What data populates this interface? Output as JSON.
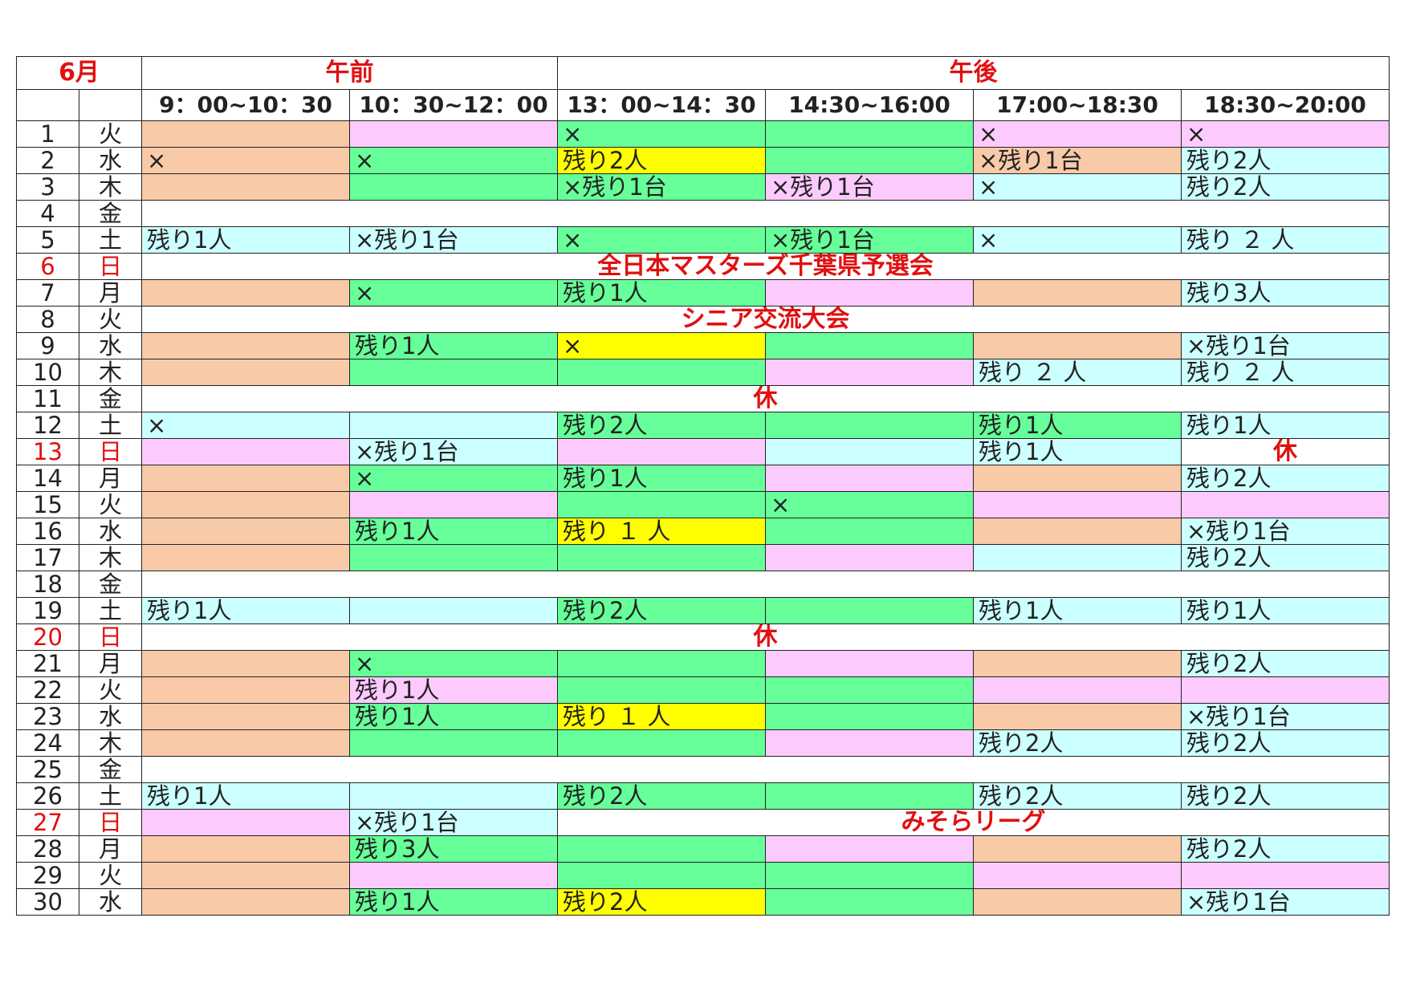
{
  "month": "6月",
  "sections": {
    "am": "午前",
    "pm": "午後"
  },
  "slots": [
    "9：00~10：30",
    "10：30~12：00",
    "13：00~14：30",
    "14:30~16:00",
    "17:00~18:30",
    "18:30~20:00"
  ],
  "colors": {
    "o": "#f8caa8",
    "p": "#fdcafd",
    "g": "#66ff99",
    "c": "#ccffff",
    "y": "#ffff00",
    "w": "#ffffff",
    "event_text": "#e01010"
  },
  "rows": [
    {
      "day": "1",
      "wd": "火",
      "cells": [
        {
          "c": "o",
          "t": ""
        },
        {
          "c": "p",
          "t": ""
        },
        {
          "c": "g",
          "t": "×"
        },
        {
          "c": "g",
          "t": ""
        },
        {
          "c": "p",
          "t": "×"
        },
        {
          "c": "p",
          "t": "×"
        }
      ]
    },
    {
      "day": "2",
      "wd": "水",
      "cells": [
        {
          "c": "o",
          "t": "×"
        },
        {
          "c": "g",
          "t": "×"
        },
        {
          "c": "y",
          "t": "残り2人"
        },
        {
          "c": "g",
          "t": ""
        },
        {
          "c": "o",
          "t": "×残り1台"
        },
        {
          "c": "c",
          "t": "残り2人"
        }
      ]
    },
    {
      "day": "3",
      "wd": "木",
      "cells": [
        {
          "c": "o",
          "t": ""
        },
        {
          "c": "g",
          "t": ""
        },
        {
          "c": "g",
          "t": "×残り1台"
        },
        {
          "c": "p",
          "t": "×残り1台"
        },
        {
          "c": "c",
          "t": "×"
        },
        {
          "c": "c",
          "t": "残り2人"
        }
      ]
    },
    {
      "day": "4",
      "wd": "金",
      "event": ""
    },
    {
      "day": "5",
      "wd": "土",
      "cells": [
        {
          "c": "c",
          "t": "残り1人"
        },
        {
          "c": "c",
          "t": "×残り1台"
        },
        {
          "c": "g",
          "t": "×"
        },
        {
          "c": "g",
          "t": "×残り1台"
        },
        {
          "c": "c",
          "t": "×"
        },
        {
          "c": "c",
          "t": "残り ２ 人"
        }
      ]
    },
    {
      "day": "6",
      "wd": "日",
      "red": true,
      "event": "全日本マスターズ千葉県予選会"
    },
    {
      "day": "7",
      "wd": "月",
      "cells": [
        {
          "c": "o",
          "t": ""
        },
        {
          "c": "g",
          "t": "×"
        },
        {
          "c": "g",
          "t": "残り1人"
        },
        {
          "c": "p",
          "t": ""
        },
        {
          "c": "o",
          "t": ""
        },
        {
          "c": "c",
          "t": "残り3人"
        }
      ]
    },
    {
      "day": "8",
      "wd": "火",
      "event": "シニア交流大会"
    },
    {
      "day": "9",
      "wd": "水",
      "cells": [
        {
          "c": "o",
          "t": ""
        },
        {
          "c": "g",
          "t": "残り1人"
        },
        {
          "c": "y",
          "t": "×"
        },
        {
          "c": "g",
          "t": ""
        },
        {
          "c": "o",
          "t": ""
        },
        {
          "c": "c",
          "t": "×残り1台"
        }
      ]
    },
    {
      "day": "10",
      "wd": "木",
      "cells": [
        {
          "c": "o",
          "t": ""
        },
        {
          "c": "g",
          "t": ""
        },
        {
          "c": "g",
          "t": ""
        },
        {
          "c": "p",
          "t": ""
        },
        {
          "c": "c",
          "t": "残り ２ 人"
        },
        {
          "c": "c",
          "t": "残り ２ 人"
        }
      ]
    },
    {
      "day": "11",
      "wd": "金",
      "event": "休"
    },
    {
      "day": "12",
      "wd": "土",
      "cells": [
        {
          "c": "c",
          "t": "×"
        },
        {
          "c": "c",
          "t": ""
        },
        {
          "c": "g",
          "t": "残り2人"
        },
        {
          "c": "g",
          "t": ""
        },
        {
          "c": "g",
          "t": "残り1人"
        },
        {
          "c": "c",
          "t": "残り1人"
        }
      ]
    },
    {
      "day": "13",
      "wd": "日",
      "red": true,
      "cells": [
        {
          "c": "p",
          "t": ""
        },
        {
          "c": "c",
          "t": "×残り1台"
        },
        {
          "c": "p",
          "t": ""
        },
        {
          "c": "c",
          "t": ""
        },
        {
          "c": "c",
          "t": "残り1人"
        },
        {
          "c": "w",
          "t": "休",
          "ev": true
        }
      ]
    },
    {
      "day": "14",
      "wd": "月",
      "cells": [
        {
          "c": "o",
          "t": ""
        },
        {
          "c": "g",
          "t": "×"
        },
        {
          "c": "g",
          "t": "残り1人"
        },
        {
          "c": "p",
          "t": ""
        },
        {
          "c": "o",
          "t": ""
        },
        {
          "c": "c",
          "t": "残り2人"
        }
      ]
    },
    {
      "day": "15",
      "wd": "火",
      "cells": [
        {
          "c": "o",
          "t": ""
        },
        {
          "c": "p",
          "t": ""
        },
        {
          "c": "g",
          "t": ""
        },
        {
          "c": "g",
          "t": "×"
        },
        {
          "c": "p",
          "t": ""
        },
        {
          "c": "p",
          "t": ""
        }
      ]
    },
    {
      "day": "16",
      "wd": "水",
      "cells": [
        {
          "c": "o",
          "t": ""
        },
        {
          "c": "g",
          "t": "残り1人"
        },
        {
          "c": "y",
          "t": "残り １ 人"
        },
        {
          "c": "g",
          "t": ""
        },
        {
          "c": "o",
          "t": ""
        },
        {
          "c": "c",
          "t": "×残り1台"
        }
      ]
    },
    {
      "day": "17",
      "wd": "木",
      "cells": [
        {
          "c": "o",
          "t": ""
        },
        {
          "c": "g",
          "t": ""
        },
        {
          "c": "g",
          "t": ""
        },
        {
          "c": "p",
          "t": ""
        },
        {
          "c": "c",
          "t": ""
        },
        {
          "c": "c",
          "t": "残り2人"
        }
      ]
    },
    {
      "day": "18",
      "wd": "金",
      "event": ""
    },
    {
      "day": "19",
      "wd": "土",
      "cells": [
        {
          "c": "c",
          "t": "残り1人"
        },
        {
          "c": "c",
          "t": ""
        },
        {
          "c": "g",
          "t": "残り2人"
        },
        {
          "c": "g",
          "t": ""
        },
        {
          "c": "c",
          "t": "残り1人"
        },
        {
          "c": "c",
          "t": "残り1人"
        }
      ]
    },
    {
      "day": "20",
      "wd": "日",
      "red": true,
      "event": "休"
    },
    {
      "day": "21",
      "wd": "月",
      "cells": [
        {
          "c": "o",
          "t": ""
        },
        {
          "c": "g",
          "t": "×"
        },
        {
          "c": "g",
          "t": ""
        },
        {
          "c": "p",
          "t": ""
        },
        {
          "c": "o",
          "t": ""
        },
        {
          "c": "c",
          "t": "残り2人"
        }
      ]
    },
    {
      "day": "22",
      "wd": "火",
      "cells": [
        {
          "c": "o",
          "t": ""
        },
        {
          "c": "p",
          "t": "残り1人"
        },
        {
          "c": "g",
          "t": ""
        },
        {
          "c": "g",
          "t": ""
        },
        {
          "c": "p",
          "t": ""
        },
        {
          "c": "p",
          "t": ""
        }
      ]
    },
    {
      "day": "23",
      "wd": "水",
      "cells": [
        {
          "c": "o",
          "t": ""
        },
        {
          "c": "g",
          "t": "残り1人"
        },
        {
          "c": "y",
          "t": "残り １ 人"
        },
        {
          "c": "g",
          "t": ""
        },
        {
          "c": "o",
          "t": ""
        },
        {
          "c": "c",
          "t": "×残り1台"
        }
      ]
    },
    {
      "day": "24",
      "wd": "木",
      "cells": [
        {
          "c": "o",
          "t": ""
        },
        {
          "c": "g",
          "t": ""
        },
        {
          "c": "g",
          "t": ""
        },
        {
          "c": "p",
          "t": ""
        },
        {
          "c": "c",
          "t": "残り2人"
        },
        {
          "c": "c",
          "t": "残り2人"
        }
      ]
    },
    {
      "day": "25",
      "wd": "金",
      "event": ""
    },
    {
      "day": "26",
      "wd": "土",
      "cells": [
        {
          "c": "c",
          "t": "残り1人"
        },
        {
          "c": "c",
          "t": ""
        },
        {
          "c": "g",
          "t": "残り2人"
        },
        {
          "c": "g",
          "t": ""
        },
        {
          "c": "c",
          "t": "残り2人"
        },
        {
          "c": "c",
          "t": "残り2人"
        }
      ]
    },
    {
      "day": "27",
      "wd": "日",
      "red": true,
      "cells": [
        {
          "c": "p",
          "t": ""
        },
        {
          "c": "c",
          "t": "×残り1台"
        }
      ],
      "event_pm": "みそらリーグ"
    },
    {
      "day": "28",
      "wd": "月",
      "cells": [
        {
          "c": "o",
          "t": ""
        },
        {
          "c": "g",
          "t": "残り3人"
        },
        {
          "c": "g",
          "t": ""
        },
        {
          "c": "p",
          "t": ""
        },
        {
          "c": "o",
          "t": ""
        },
        {
          "c": "c",
          "t": "残り2人"
        }
      ]
    },
    {
      "day": "29",
      "wd": "火",
      "cells": [
        {
          "c": "o",
          "t": ""
        },
        {
          "c": "p",
          "t": ""
        },
        {
          "c": "g",
          "t": ""
        },
        {
          "c": "g",
          "t": ""
        },
        {
          "c": "p",
          "t": ""
        },
        {
          "c": "p",
          "t": ""
        }
      ]
    },
    {
      "day": "30",
      "wd": "水",
      "cells": [
        {
          "c": "o",
          "t": ""
        },
        {
          "c": "g",
          "t": "残り1人"
        },
        {
          "c": "y",
          "t": "残り2人"
        },
        {
          "c": "g",
          "t": ""
        },
        {
          "c": "o",
          "t": ""
        },
        {
          "c": "c",
          "t": "×残り1台"
        }
      ]
    }
  ]
}
